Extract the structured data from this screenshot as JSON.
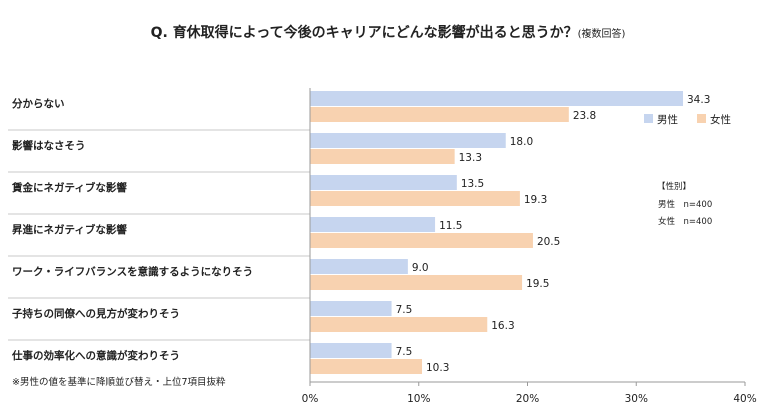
{
  "title": "Q. 育休取得によって今後のキャリアにどんな影響が出ると思うか？",
  "title_note": "(複数回答)",
  "footnote": "※男性の値を基準に降順並び替え・上位7項目抜粋",
  "sample_note": {
    "heading": "【性別】",
    "lines": [
      "男性　n=400",
      "女性　n=400"
    ]
  },
  "colors": {
    "male": "#c6d5ef",
    "female": "#f8d2b0",
    "axis": "#9a9a9a",
    "grid": "#c8c8c8"
  },
  "chart_data": {
    "type": "bar",
    "orientation": "horizontal",
    "title": "Q. 育休取得によって今後のキャリアにどんな影響が出ると思うか？(複数回答)",
    "categories": [
      "分からない",
      "影響はなさそう",
      "賃金にネガティブな影響",
      "昇進にネガティブな影響",
      "ワーク・ライフバランスを意識するようになりそう",
      "子持ちの同僚への見方が変わりそう",
      "仕事の効率化への意識が変わりそう"
    ],
    "series": [
      {
        "name": "男性",
        "values": [
          34.3,
          18.0,
          13.5,
          11.5,
          9.0,
          7.5,
          7.5
        ]
      },
      {
        "name": "女性",
        "values": [
          23.8,
          13.3,
          19.3,
          20.5,
          19.5,
          16.3,
          10.3
        ]
      }
    ],
    "value_labels": [
      [
        "34.3",
        "18.0",
        "13.5",
        "11.5",
        "9.0",
        "7.5",
        "7.5"
      ],
      [
        "23.8",
        "13.3",
        "19.3",
        "20.5",
        "19.5",
        "16.3",
        "10.3"
      ]
    ],
    "xlim": [
      0,
      40
    ],
    "xticks": [
      "0%",
      "10%",
      "20%",
      "30%",
      "40%"
    ],
    "grid": false,
    "legend": "top-right"
  }
}
